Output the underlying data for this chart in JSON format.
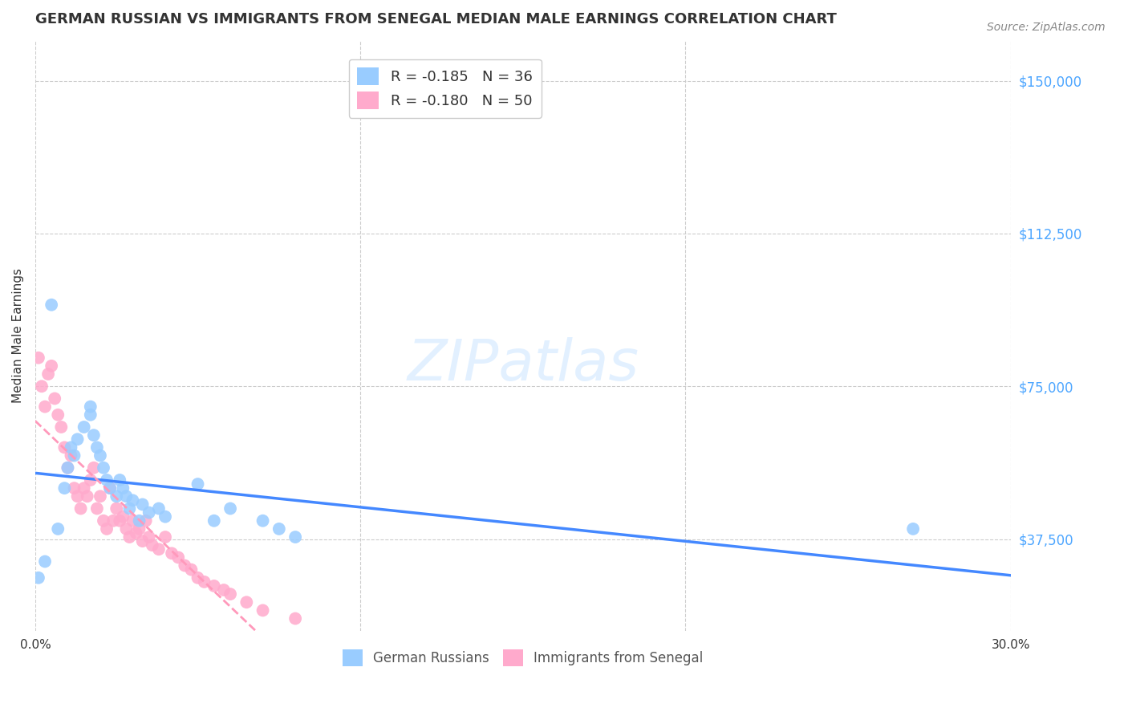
{
  "title": "GERMAN RUSSIAN VS IMMIGRANTS FROM SENEGAL MEDIAN MALE EARNINGS CORRELATION CHART",
  "source": "Source: ZipAtlas.com",
  "ylabel": "Median Male Earnings",
  "xlim": [
    0.0,
    0.3
  ],
  "ylim": [
    15000,
    160000
  ],
  "ytick_labels": [
    "$37,500",
    "$75,000",
    "$112,500",
    "$150,000"
  ],
  "ytick_values": [
    37500,
    75000,
    112500,
    150000
  ],
  "legend_label1": "R = -0.185   N = 36",
  "legend_label2": "R = -0.180   N = 50",
  "legend_bottom_label1": "German Russians",
  "legend_bottom_label2": "Immigrants from Senegal",
  "color_blue": "#99ccff",
  "color_pink": "#ffaacc",
  "color_line_blue": "#4488ff",
  "color_line_pink": "#ff99bb",
  "color_right_axis": "#4da6ff",
  "watermark_color": "#ddeeff",
  "background_color": "#ffffff",
  "german_russian_x": [
    0.001,
    0.003,
    0.005,
    0.007,
    0.009,
    0.01,
    0.011,
    0.012,
    0.013,
    0.015,
    0.017,
    0.017,
    0.018,
    0.019,
    0.02,
    0.021,
    0.022,
    0.023,
    0.025,
    0.026,
    0.027,
    0.028,
    0.029,
    0.03,
    0.032,
    0.033,
    0.035,
    0.038,
    0.04,
    0.05,
    0.055,
    0.06,
    0.07,
    0.075,
    0.08,
    0.27
  ],
  "german_russian_y": [
    28000,
    32000,
    95000,
    40000,
    50000,
    55000,
    60000,
    58000,
    62000,
    65000,
    70000,
    68000,
    63000,
    60000,
    58000,
    55000,
    52000,
    50000,
    48000,
    52000,
    50000,
    48000,
    45000,
    47000,
    42000,
    46000,
    44000,
    45000,
    43000,
    51000,
    42000,
    45000,
    42000,
    40000,
    38000,
    40000
  ],
  "senegal_x": [
    0.001,
    0.002,
    0.003,
    0.004,
    0.005,
    0.006,
    0.007,
    0.008,
    0.009,
    0.01,
    0.011,
    0.012,
    0.013,
    0.014,
    0.015,
    0.016,
    0.017,
    0.018,
    0.019,
    0.02,
    0.021,
    0.022,
    0.023,
    0.024,
    0.025,
    0.026,
    0.027,
    0.028,
    0.029,
    0.03,
    0.031,
    0.032,
    0.033,
    0.034,
    0.035,
    0.036,
    0.038,
    0.04,
    0.042,
    0.044,
    0.046,
    0.048,
    0.05,
    0.052,
    0.055,
    0.058,
    0.06,
    0.065,
    0.07,
    0.08
  ],
  "senegal_y": [
    82000,
    75000,
    70000,
    78000,
    80000,
    72000,
    68000,
    65000,
    60000,
    55000,
    58000,
    50000,
    48000,
    45000,
    50000,
    48000,
    52000,
    55000,
    45000,
    48000,
    42000,
    40000,
    50000,
    42000,
    45000,
    42000,
    43000,
    40000,
    38000,
    42000,
    39000,
    40000,
    37000,
    42000,
    38000,
    36000,
    35000,
    38000,
    34000,
    33000,
    31000,
    30000,
    28000,
    27000,
    26000,
    25000,
    24000,
    22000,
    20000,
    18000
  ]
}
